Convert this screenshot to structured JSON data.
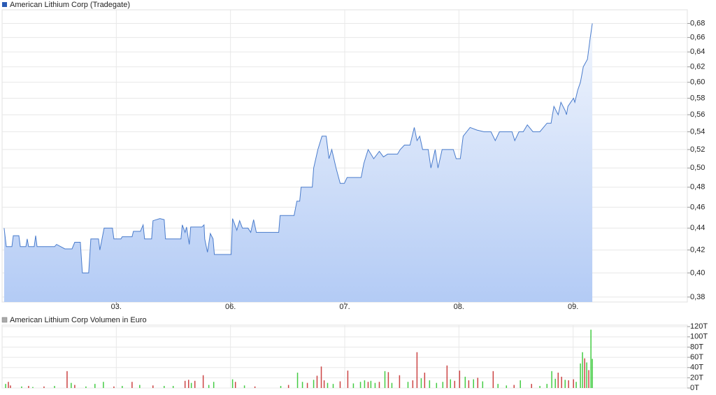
{
  "chart_data": [
    {
      "type": "area",
      "title": "American Lithium Corp (Tradegate)",
      "color": "#4a7ccc",
      "log": true,
      "grid": true,
      "x": [
        0.018,
        0.037,
        0.086,
        0.098,
        0.147,
        0.159,
        0.208,
        0.22,
        0.232,
        0.281,
        0.294,
        0.306,
        0.459,
        0.477,
        0.55,
        0.612,
        0.636,
        0.685,
        0.703,
        0.758,
        0.777,
        0.844,
        0.856,
        0.893,
        0.966,
        0.979,
        1.04,
        1.052,
        1.138,
        1.15,
        1.211,
        1.235,
        1.248,
        1.309,
        1.321,
        1.382,
        1.419,
        1.431,
        1.566,
        1.578,
        1.602,
        1.615,
        1.639,
        1.651,
        1.749,
        1.768,
        1.774,
        1.798,
        1.823,
        1.847,
        1.859,
        2.006,
        2.018,
        2.055,
        2.08,
        2.104,
        2.153,
        2.177,
        2.202,
        2.226,
        2.422,
        2.434,
        2.557,
        2.581,
        2.606,
        2.618,
        2.716,
        2.728,
        2.765,
        2.801,
        2.838,
        2.862,
        2.887,
        2.924,
        2.96,
        2.997,
        3.021,
        3.144,
        3.168,
        3.205,
        3.254,
        3.303,
        3.339,
        3.376,
        3.462,
        3.486,
        3.523,
        3.572,
        3.609,
        3.633,
        3.657,
        3.682,
        3.731,
        3.755,
        3.792,
        3.817,
        3.853,
        3.914,
        3.951,
        3.976,
        4.012,
        4.037,
        4.098,
        4.159,
        4.22,
        4.281,
        4.318,
        4.355,
        4.465,
        4.489,
        4.526,
        4.563,
        4.599,
        4.648,
        4.709,
        4.771,
        4.807,
        4.832,
        4.869,
        4.893,
        4.93,
        4.942,
        4.954,
        4.979,
        5.003,
        5.015,
        5.04,
        5.064,
        5.089,
        5.125,
        5.15,
        5.168
      ],
      "values": [
        0.44,
        0.423,
        0.423,
        0.433,
        0.433,
        0.423,
        0.423,
        0.43,
        0.423,
        0.423,
        0.433,
        0.423,
        0.423,
        0.425,
        0.421,
        0.421,
        0.427,
        0.427,
        0.4,
        0.4,
        0.43,
        0.43,
        0.42,
        0.44,
        0.44,
        0.43,
        0.43,
        0.432,
        0.432,
        0.437,
        0.437,
        0.443,
        0.43,
        0.43,
        0.447,
        0.449,
        0.448,
        0.43,
        0.43,
        0.443,
        0.436,
        0.441,
        0.425,
        0.441,
        0.441,
        0.443,
        0.43,
        0.418,
        0.435,
        0.43,
        0.416,
        0.416,
        0.449,
        0.438,
        0.447,
        0.44,
        0.44,
        0.436,
        0.448,
        0.436,
        0.436,
        0.452,
        0.452,
        0.466,
        0.466,
        0.48,
        0.48,
        0.5,
        0.52,
        0.535,
        0.535,
        0.51,
        0.52,
        0.5,
        0.484,
        0.484,
        0.49,
        0.49,
        0.505,
        0.52,
        0.51,
        0.518,
        0.512,
        0.515,
        0.515,
        0.52,
        0.525,
        0.525,
        0.545,
        0.53,
        0.535,
        0.52,
        0.52,
        0.5,
        0.52,
        0.5,
        0.52,
        0.52,
        0.52,
        0.51,
        0.51,
        0.535,
        0.545,
        0.542,
        0.54,
        0.54,
        0.53,
        0.54,
        0.54,
        0.53,
        0.54,
        0.54,
        0.548,
        0.54,
        0.54,
        0.55,
        0.55,
        0.57,
        0.56,
        0.575,
        0.565,
        0.56,
        0.57,
        0.575,
        0.58,
        0.575,
        0.59,
        0.6,
        0.62,
        0.63,
        0.66,
        0.68
      ],
      "xlim": [
        0,
        6
      ],
      "xticks": [
        {
          "value": 1,
          "label": "03."
        },
        {
          "value": 2,
          "label": "06."
        },
        {
          "value": 3,
          "label": "07."
        },
        {
          "value": 4,
          "label": "08."
        },
        {
          "value": 5,
          "label": "09."
        }
      ],
      "ylim": [
        0.376,
        0.7
      ],
      "yticks": [
        {
          "value": 0.38,
          "label": "0,38"
        },
        {
          "value": 0.4,
          "label": "0,40"
        },
        {
          "value": 0.42,
          "label": "0,42"
        },
        {
          "value": 0.44,
          "label": "0,44"
        },
        {
          "value": 0.46,
          "label": "0,46"
        },
        {
          "value": 0.48,
          "label": "0,48"
        },
        {
          "value": 0.5,
          "label": "0,50"
        },
        {
          "value": 0.52,
          "label": "0,52"
        },
        {
          "value": 0.54,
          "label": "0,54"
        },
        {
          "value": 0.56,
          "label": "0,56"
        },
        {
          "value": 0.58,
          "label": "0,58"
        },
        {
          "value": 0.6,
          "label": "0,60"
        },
        {
          "value": 0.62,
          "label": "0,62"
        },
        {
          "value": 0.64,
          "label": "0,64"
        },
        {
          "value": 0.66,
          "label": "0,66"
        },
        {
          "value": 0.68,
          "label": "0,68"
        }
      ]
    },
    {
      "type": "bar",
      "title": "American Lithium Corp Volumen in Euro",
      "grid": true,
      "x": [
        0.031,
        0.055,
        0.073,
        0.171,
        0.232,
        0.269,
        0.367,
        0.459,
        0.569,
        0.605,
        0.636,
        0.734,
        0.813,
        0.887,
        0.979,
        1.052,
        1.138,
        1.205,
        1.321,
        1.419,
        1.498,
        1.602,
        1.633,
        1.657,
        1.688,
        1.761,
        1.81,
        1.853,
        2.018,
        2.043,
        2.122,
        2.214,
        2.44,
        2.508,
        2.587,
        2.63,
        2.673,
        2.728,
        2.758,
        2.795,
        2.82,
        2.85,
        2.899,
        2.96,
        3.027,
        3.076,
        3.138,
        3.174,
        3.205,
        3.229,
        3.266,
        3.303,
        3.352,
        3.382,
        3.413,
        3.48,
        3.554,
        3.596,
        3.633,
        3.67,
        3.7,
        3.743,
        3.804,
        3.859,
        3.896,
        3.926,
        3.963,
        4.006,
        4.055,
        4.086,
        4.128,
        4.165,
        4.208,
        4.3,
        4.342,
        4.416,
        4.483,
        4.538,
        4.636,
        4.709,
        4.771,
        4.813,
        4.844,
        4.869,
        4.899,
        4.93,
        4.96,
        5.003,
        5.027,
        5.064,
        5.082,
        5.101,
        5.119,
        5.137,
        5.156,
        5.168
      ],
      "values": [
        8,
        12,
        5,
        3,
        4,
        2,
        3,
        4,
        33,
        10,
        6,
        3,
        8,
        12,
        3,
        4,
        12,
        6,
        5,
        4,
        4,
        14,
        16,
        10,
        14,
        25,
        6,
        12,
        17,
        12,
        5,
        3,
        4,
        6,
        30,
        12,
        10,
        16,
        24,
        42,
        15,
        10,
        8,
        13,
        34,
        9,
        12,
        15,
        12,
        14,
        10,
        12,
        33,
        31,
        10,
        25,
        12,
        15,
        70,
        19,
        30,
        15,
        10,
        12,
        44,
        17,
        14,
        34,
        22,
        15,
        17,
        20,
        13,
        33,
        8,
        5,
        6,
        15,
        8,
        4,
        8,
        33,
        18,
        30,
        22,
        16,
        15,
        17,
        12,
        48,
        70,
        58,
        50,
        35,
        114,
        57
      ],
      "colors": [
        "#4c4",
        "#c44",
        "#c44",
        "#4c4",
        "#c44",
        "#4c4",
        "#c44",
        "#4c4",
        "#c44",
        "#4c4",
        "#c44",
        "#4c4",
        "#4c4",
        "#4c4",
        "#c44",
        "#4c4",
        "#c44",
        "#4c4",
        "#c44",
        "#4c4",
        "#4c4",
        "#c44",
        "#c44",
        "#4c4",
        "#c44",
        "#c44",
        "#4c4",
        "#4c4",
        "#4c4",
        "#c44",
        "#4c4",
        "#c44",
        "#4c4",
        "#c44",
        "#4c4",
        "#4c4",
        "#c44",
        "#4c4",
        "#c44",
        "#c44",
        "#c44",
        "#4c4",
        "#4c4",
        "#c44",
        "#c44",
        "#4c4",
        "#4c4",
        "#4c4",
        "#c44",
        "#4c4",
        "#4c4",
        "#c44",
        "#4c4",
        "#c44",
        "#4c4",
        "#c44",
        "#4c4",
        "#c44",
        "#c44",
        "#4c4",
        "#c44",
        "#4c4",
        "#4c4",
        "#4c4",
        "#c44",
        "#4c4",
        "#c44",
        "#c44",
        "#4c4",
        "#c44",
        "#4c4",
        "#c44",
        "#4c4",
        "#c44",
        "#4c4",
        "#4c4",
        "#c44",
        "#4c4",
        "#c44",
        "#4c4",
        "#4c4",
        "#4c4",
        "#4c4",
        "#c44",
        "#c44",
        "#4c4",
        "#c44",
        "#c44",
        "#4c4",
        "#4c4",
        "#4c4",
        "#c44",
        "#4c4",
        "#c44",
        "#4c4",
        "#4c4"
      ],
      "xlim": [
        0,
        6
      ],
      "ylim": [
        0,
        123
      ],
      "yticks": [
        {
          "value": 0,
          "label": "0T"
        },
        {
          "value": 20,
          "label": "20T"
        },
        {
          "value": 40,
          "label": "40T"
        },
        {
          "value": 60,
          "label": "60T"
        },
        {
          "value": 80,
          "label": "80T"
        },
        {
          "value": 100,
          "label": "100T"
        },
        {
          "value": 120,
          "label": "120T"
        }
      ]
    }
  ]
}
